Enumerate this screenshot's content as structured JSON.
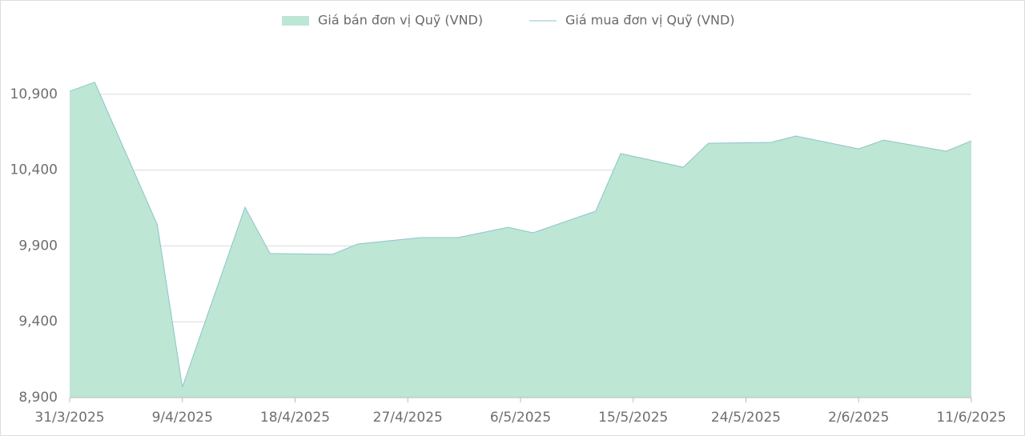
{
  "chart_data": {
    "type": "area",
    "x": [
      "31/3/2025",
      "2/4/2025",
      "7/4/2025",
      "9/4/2025",
      "14/4/2025",
      "16/4/2025",
      "21/4/2025",
      "23/4/2025",
      "28/4/2025",
      "1/5/2025",
      "5/5/2025",
      "7/5/2025",
      "12/5/2025",
      "14/5/2025",
      "19/5/2025",
      "21/5/2025",
      "26/5/2025",
      "28/5/2025",
      "2/6/2025",
      "4/6/2025",
      "9/6/2025",
      "11/6/2025"
    ],
    "series": [
      {
        "name": "Giá bán đơn vị Quỹ (VND)",
        "color": "#bde6d4",
        "style": "area",
        "values": [
          10920,
          10980,
          10040,
          8970,
          10155,
          9850,
          9845,
          9913,
          9955,
          9955,
          10023,
          9987,
          10129,
          10509,
          10419,
          10577,
          10583,
          10625,
          10540,
          10598,
          10525,
          10593
        ]
      },
      {
        "name": "Giá mua đơn vị Quỹ (VND)",
        "color": "#8cc4cc",
        "style": "line",
        "values": [
          10920,
          10980,
          10040,
          8970,
          10155,
          9850,
          9845,
          9913,
          9955,
          9955,
          10023,
          9987,
          10129,
          10509,
          10419,
          10577,
          10583,
          10625,
          10540,
          10598,
          10525,
          10593
        ]
      }
    ],
    "xlim": [
      "31/3/2025",
      "11/6/2025"
    ],
    "xticks": [
      "31/3/2025",
      "9/4/2025",
      "18/4/2025",
      "27/4/2025",
      "6/5/2025",
      "15/5/2025",
      "24/5/2025",
      "2/6/2025",
      "11/6/2025"
    ],
    "ylim": [
      8900,
      11200
    ],
    "yticks": [
      {
        "value": 8900,
        "label": "8,900"
      },
      {
        "value": 9400,
        "label": "9,400"
      },
      {
        "value": 9900,
        "label": "9,900"
      },
      {
        "value": 10400,
        "label": "10,400"
      },
      {
        "value": 10900,
        "label": "10,900"
      }
    ],
    "grid": true,
    "legend": "top"
  }
}
